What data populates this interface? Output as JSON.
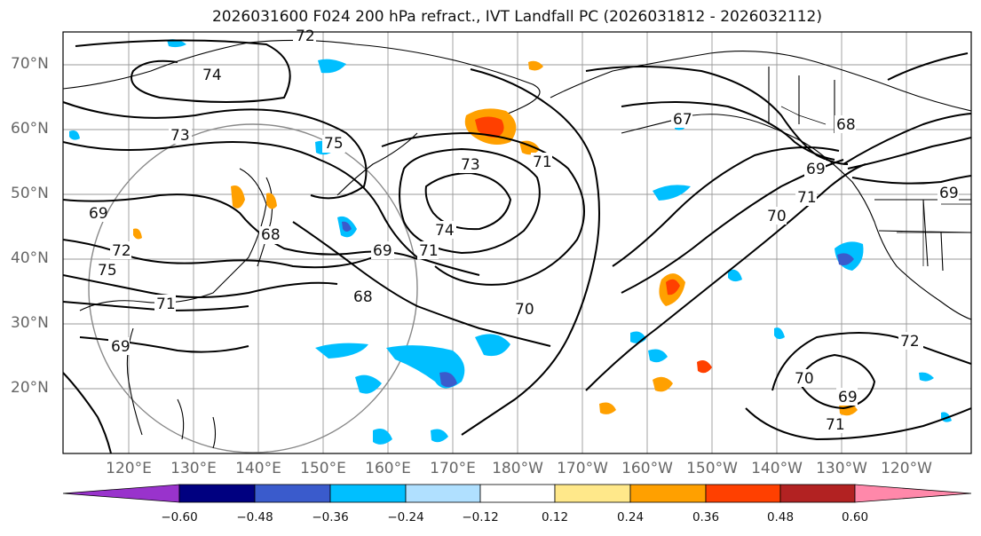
{
  "title": "2026031600 F024 200 hPa refract., IVT Landfall PC (2026031812 - 2026032112)",
  "map": {
    "lat_labels": [
      "70°N",
      "60°N",
      "50°N",
      "40°N",
      "30°N",
      "20°N"
    ],
    "lon_labels": [
      "120°E",
      "130°E",
      "140°E",
      "150°E",
      "160°E",
      "170°E",
      "180°W",
      "170°W",
      "160°W",
      "150°W",
      "140°W",
      "130°W",
      "120°W"
    ],
    "contour_labels": [
      "72",
      "74",
      "73",
      "75",
      "69",
      "72",
      "75",
      "71",
      "69",
      "68",
      "69",
      "68",
      "71",
      "73",
      "74",
      "71",
      "69",
      "70",
      "67",
      "68",
      "69",
      "71",
      "70",
      "72",
      "70",
      "69",
      "71"
    ]
  },
  "colorbar": {
    "ticks": [
      "−0.60",
      "−0.48",
      "−0.36",
      "−0.24",
      "−0.12",
      "0.12",
      "0.24",
      "0.36",
      "0.48",
      "0.60"
    ],
    "colors": [
      "#9933cc",
      "#000080",
      "#3a5bcc",
      "#00bfff",
      "#b0e0ff",
      "#ffffff",
      "#ffe88a",
      "#ffa000",
      "#ff4000",
      "#b22222",
      "#ff88aa"
    ]
  }
}
